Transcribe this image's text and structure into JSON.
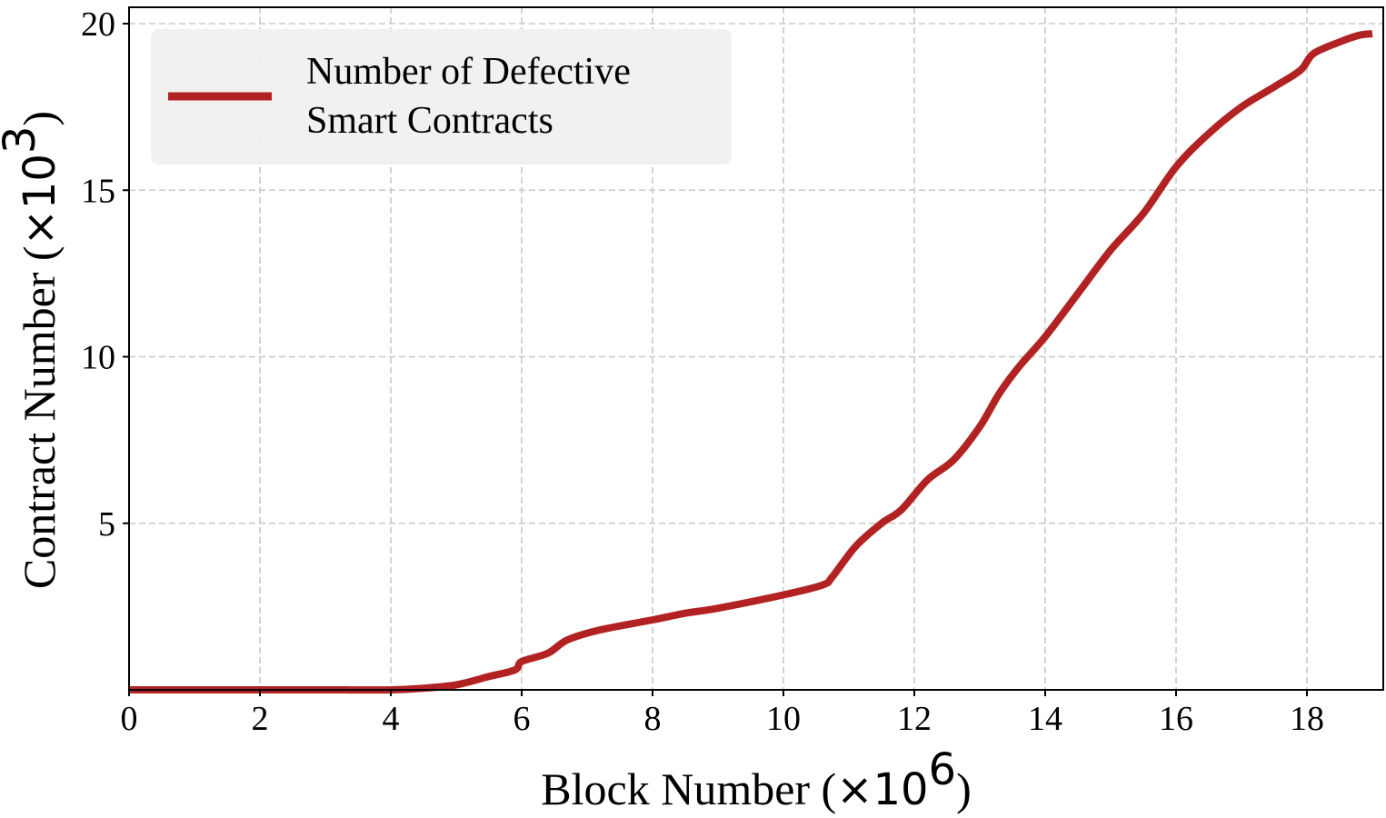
{
  "chart_data": {
    "type": "line",
    "title": "",
    "xlabel": "Block Number (×10^6)",
    "ylabel": "Contract Number (×10^3)",
    "xlim": [
      0,
      19.2
    ],
    "ylim": [
      0,
      20.1
    ],
    "grid": true,
    "legend_position": "upper left",
    "x_ticks": [
      0,
      2,
      4,
      6,
      8,
      10,
      12,
      14,
      16,
      18
    ],
    "y_ticks": [
      5,
      10,
      15,
      20
    ],
    "series": [
      {
        "name": "Number of Defective Smart Contracts",
        "color": "#b22222",
        "x": [
          0,
          1,
          2,
          3,
          4,
          4.5,
          5,
          5.5,
          5.9,
          6,
          6.4,
          6.7,
          7.2,
          8,
          8.5,
          9,
          10,
          10.6,
          10.75,
          11.1,
          11.5,
          11.8,
          12.2,
          12.6,
          13,
          13.3,
          13.6,
          14,
          14.5,
          15,
          15.5,
          16,
          16.5,
          17,
          17.5,
          17.9,
          18.1,
          18.5,
          18.8,
          19.0
        ],
        "values": [
          0,
          0,
          0,
          0,
          0,
          0.05,
          0.15,
          0.4,
          0.6,
          0.85,
          1.1,
          1.5,
          1.8,
          2.1,
          2.3,
          2.45,
          2.85,
          3.15,
          3.4,
          4.3,
          5.0,
          5.4,
          6.3,
          6.9,
          7.9,
          8.9,
          9.7,
          10.6,
          11.9,
          13.2,
          14.3,
          15.7,
          16.7,
          17.5,
          18.1,
          18.6,
          19.1,
          19.45,
          19.65,
          19.7
        ]
      }
    ]
  },
  "labels": {
    "x_axis_main": "Block Number (",
    "x_axis_mult": "×10",
    "x_axis_exp": "6",
    "x_axis_close": ")",
    "y_axis_main": "Contract Number (",
    "y_axis_mult": "×10",
    "y_axis_exp": "3",
    "y_axis_close": ")",
    "legend_line1": "Number of Defective",
    "legend_line2": "Smart Contracts"
  }
}
